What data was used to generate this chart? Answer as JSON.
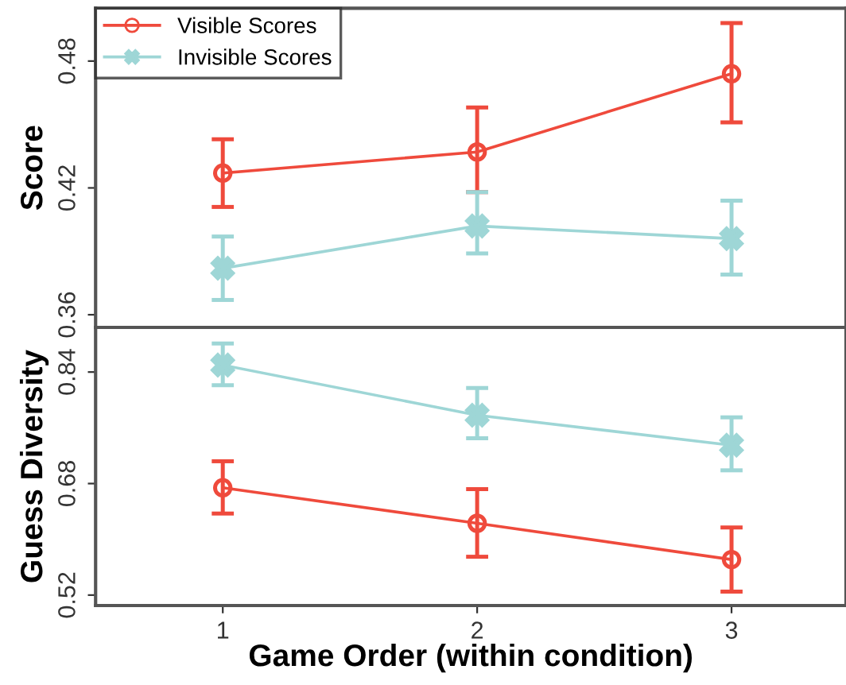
{
  "chart_data": [
    {
      "type": "line",
      "ylabel": "Score",
      "x": [
        1,
        2,
        3
      ],
      "xlim": [
        0.5,
        3.45
      ],
      "ylim": [
        0.354,
        0.505
      ],
      "yticks": [
        0.36,
        0.42,
        0.48
      ],
      "tick_labels": "y",
      "grid": false,
      "legend": "top left",
      "series": [
        {
          "name": "Visible Scores",
          "color": "#ef4a3c",
          "marker": "circle",
          "values": [
            0.427,
            0.437,
            0.474
          ],
          "errors": [
            [
              0.411,
              0.443
            ],
            [
              0.418,
              0.458
            ],
            [
              0.451,
              0.498
            ]
          ]
        },
        {
          "name": "Invisible Scores",
          "color": "#9ed6d6",
          "marker": "cross",
          "values": [
            0.382,
            0.402,
            0.396
          ],
          "errors": [
            [
              0.367,
              0.397
            ],
            [
              0.389,
              0.418
            ],
            [
              0.379,
              0.414
            ]
          ]
        }
      ]
    },
    {
      "type": "line",
      "ylabel": "Guess Diversity",
      "xlabel": "Game Order (within condition)",
      "x": [
        1,
        2,
        3
      ],
      "xlim": [
        0.5,
        3.45
      ],
      "xticks": [
        1,
        2,
        3
      ],
      "ylim": [
        0.505,
        0.904
      ],
      "yticks": [
        0.52,
        0.68,
        0.84
      ],
      "grid": false,
      "series": [
        {
          "color": "#ef4a3c",
          "marker": "circle",
          "values": [
            0.674,
            0.623,
            0.571
          ],
          "errors": [
            [
              0.637,
              0.712
            ],
            [
              0.575,
              0.672
            ],
            [
              0.525,
              0.617
            ]
          ]
        },
        {
          "color": "#9ed6d6",
          "marker": "cross",
          "values": [
            0.85,
            0.778,
            0.735
          ],
          "errors": [
            [
              0.821,
              0.881
            ],
            [
              0.745,
              0.817
            ],
            [
              0.699,
              0.775
            ]
          ]
        }
      ]
    }
  ]
}
